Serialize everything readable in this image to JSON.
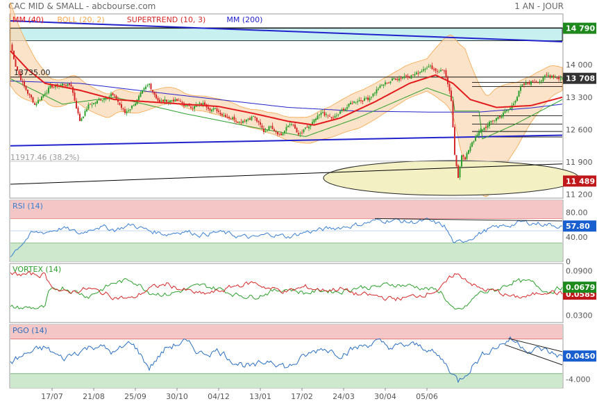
{
  "header": {
    "title": "CAC MID & SMALL - abcbourse.com",
    "period": "1 AN - JOUR"
  },
  "colors": {
    "candle_up": "#2ca02c",
    "candle_down": "#d62728",
    "mm40": "#e31a1c",
    "boll": "#f5a64a",
    "supertrend": "#d62728",
    "mm200": "#2222cc",
    "rsi_line": "#3a7fd0",
    "vortex_plus": "#2ca02c",
    "vortex_minus": "#d62728",
    "pgo_line": "#2a6fc0",
    "zone_over": "#f4c6c6",
    "zone_under": "#cde8cd",
    "price_badge": "#333333",
    "green_badge": "#1e8a1e",
    "red_badge": "#c0181a",
    "blue_badge": "#1a5fd0"
  },
  "chart_data": [
    {
      "type": "candlestick",
      "panel": "price",
      "legend": [
        {
          "label": "MM (40)",
          "color": "#e31a1c"
        },
        {
          "label": "BOLL (20, 2)",
          "color": "#f5a64a"
        },
        {
          "label": "SUPERTREND (10, 3)",
          "color": "#d62728"
        },
        {
          "label": "MM (200)",
          "color": "#2222cc"
        }
      ],
      "y_ticks": [
        "14 000",
        "13 300",
        "12 600",
        "11 900",
        "11 200"
      ],
      "y_tick_values": [
        14000,
        13300,
        12600,
        11900,
        11200
      ],
      "ylim": [
        11120,
        15100
      ],
      "badges": [
        {
          "label": "14 790",
          "value": 14790,
          "kind": "green"
        },
        {
          "label": "13 708",
          "value": 13708,
          "kind": "price"
        },
        {
          "label": "11 489",
          "value": 11489,
          "kind": "red"
        }
      ],
      "annotations": [
        {
          "label": "13735.00",
          "value": 13735
        },
        {
          "label": "11917.46  (38.2%)",
          "value": 11917.46
        }
      ],
      "anchors": [
        [
          0,
          14450
        ],
        [
          3,
          14000
        ],
        [
          8,
          13520
        ],
        [
          14,
          13150
        ],
        [
          22,
          13500
        ],
        [
          30,
          13580
        ],
        [
          35,
          13550
        ],
        [
          40,
          12800
        ],
        [
          45,
          13120
        ],
        [
          52,
          13250
        ],
        [
          58,
          13380
        ],
        [
          62,
          13200
        ],
        [
          66,
          12950
        ],
        [
          72,
          13200
        ],
        [
          80,
          13560
        ],
        [
          86,
          13200
        ],
        [
          94,
          13250
        ],
        [
          102,
          13100
        ],
        [
          112,
          13150
        ],
        [
          122,
          12950
        ],
        [
          132,
          12800
        ],
        [
          140,
          12900
        ],
        [
          146,
          12550
        ],
        [
          150,
          12700
        ],
        [
          156,
          12500
        ],
        [
          162,
          12750
        ],
        [
          166,
          12450
        ],
        [
          172,
          12650
        ],
        [
          180,
          12950
        ],
        [
          186,
          12820
        ],
        [
          194,
          13100
        ],
        [
          200,
          13250
        ],
        [
          206,
          13280
        ],
        [
          212,
          13500
        ],
        [
          220,
          13680
        ],
        [
          228,
          13780
        ],
        [
          234,
          13800
        ],
        [
          240,
          14000
        ],
        [
          246,
          13880
        ],
        [
          250,
          13900
        ],
        [
          254,
          13200
        ],
        [
          256,
          12000
        ],
        [
          258,
          11580
        ],
        [
          260,
          12100
        ],
        [
          262,
          11950
        ],
        [
          266,
          12350
        ],
        [
          272,
          12600
        ],
        [
          280,
          12850
        ],
        [
          288,
          13050
        ],
        [
          294,
          13500
        ],
        [
          300,
          13630
        ],
        [
          306,
          13700
        ],
        [
          312,
          13780
        ],
        [
          318,
          13708
        ]
      ],
      "mm40_anchors": [
        [
          0,
          14300
        ],
        [
          10,
          13900
        ],
        [
          20,
          13600
        ],
        [
          40,
          13450
        ],
        [
          60,
          13250
        ],
        [
          80,
          13200
        ],
        [
          100,
          13150
        ],
        [
          120,
          13100
        ],
        [
          140,
          12950
        ],
        [
          160,
          12780
        ],
        [
          175,
          12700
        ],
        [
          190,
          12850
        ],
        [
          210,
          13200
        ],
        [
          230,
          13600
        ],
        [
          245,
          13780
        ],
        [
          255,
          13600
        ],
        [
          265,
          13250
        ],
        [
          280,
          13080
        ],
        [
          300,
          13120
        ],
        [
          318,
          13300
        ]
      ],
      "mm200_anchors": [
        [
          0,
          13650
        ],
        [
          40,
          13600
        ],
        [
          80,
          13420
        ],
        [
          120,
          13250
        ],
        [
          160,
          13080
        ],
        [
          200,
          13000
        ],
        [
          240,
          12980
        ],
        [
          270,
          12980
        ],
        [
          300,
          13070
        ],
        [
          318,
          13150
        ]
      ],
      "supertrend_anchors": [
        [
          0,
          13700
        ],
        [
          30,
          13150
        ],
        [
          60,
          13300
        ],
        [
          100,
          12950
        ],
        [
          140,
          12650
        ],
        [
          170,
          12450
        ],
        [
          200,
          12850
        ],
        [
          240,
          13500
        ],
        [
          255,
          13300
        ],
        [
          256,
          13000
        ],
        [
          270,
          13000
        ],
        [
          272,
          12400
        ],
        [
          290,
          12700
        ],
        [
          318,
          13250
        ]
      ],
      "boll_width_anchors": [
        [
          0,
          900
        ],
        [
          20,
          300
        ],
        [
          60,
          250
        ],
        [
          100,
          150
        ],
        [
          140,
          200
        ],
        [
          170,
          280
        ],
        [
          200,
          400
        ],
        [
          240,
          350
        ],
        [
          256,
          900
        ],
        [
          262,
          1300
        ],
        [
          280,
          1000
        ],
        [
          300,
          500
        ],
        [
          318,
          250
        ]
      ],
      "trend_lines": [
        {
          "x1": 0,
          "y1": 14950,
          "x2": 318,
          "y2": 14500,
          "color": "#2222cc"
        },
        {
          "x1": 0,
          "y1": 12250,
          "x2": 318,
          "y2": 12480,
          "color": "#2222cc"
        },
        {
          "x1": 0,
          "y1": 11420,
          "x2": 318,
          "y2": 11860,
          "color": "#000000"
        }
      ],
      "zones": [
        {
          "y_top": 14800,
          "y_bottom": 14520,
          "color": "#c9f0f0"
        }
      ],
      "horizontal_levels": [
        14790,
        13735,
        13620,
        13530,
        12900,
        12720,
        12560,
        12440,
        11917.46
      ]
    },
    {
      "type": "line",
      "panel": "rsi",
      "legend": [
        {
          "label": "RSI (14)",
          "color": "#3a7fd0"
        }
      ],
      "y_ticks": [
        "80.00",
        "40.00",
        "0"
      ],
      "y_tick_values": [
        80,
        40,
        0
      ],
      "ylim": [
        0,
        100
      ],
      "zone_over": [
        70,
        100
      ],
      "zone_under": [
        0,
        30
      ],
      "mid_level": 50,
      "badge": {
        "label": "57.80",
        "value": 57.8
      },
      "anchors": [
        [
          0,
          10
        ],
        [
          5,
          25
        ],
        [
          12,
          45
        ],
        [
          20,
          48
        ],
        [
          30,
          55
        ],
        [
          40,
          45
        ],
        [
          50,
          58
        ],
        [
          60,
          52
        ],
        [
          70,
          60
        ],
        [
          80,
          50
        ],
        [
          90,
          45
        ],
        [
          100,
          50
        ],
        [
          110,
          44
        ],
        [
          120,
          48
        ],
        [
          130,
          42
        ],
        [
          140,
          38
        ],
        [
          150,
          45
        ],
        [
          160,
          40
        ],
        [
          170,
          48
        ],
        [
          180,
          52
        ],
        [
          190,
          56
        ],
        [
          200,
          60
        ],
        [
          210,
          66
        ],
        [
          220,
          68
        ],
        [
          230,
          64
        ],
        [
          240,
          66
        ],
        [
          250,
          58
        ],
        [
          256,
          28
        ],
        [
          260,
          32
        ],
        [
          266,
          40
        ],
        [
          275,
          52
        ],
        [
          285,
          58
        ],
        [
          295,
          64
        ],
        [
          305,
          62
        ],
        [
          318,
          57.8
        ]
      ]
    },
    {
      "type": "line",
      "panel": "vortex",
      "legend": [
        {
          "label": "VORTEX (14)",
          "color": "#2ca02c"
        }
      ],
      "y_ticks": [
        "0.0900",
        "0.0300"
      ],
      "y_tick_values": [
        0.09,
        0.03
      ],
      "ylim": [
        0.02,
        0.1
      ],
      "badges": [
        {
          "label": "0.0679",
          "value": 0.0679,
          "kind": "green"
        },
        {
          "label": "0.0585",
          "value": 0.0585,
          "kind": "red"
        }
      ],
      "series": [
        {
          "name": "VI+",
          "color": "#2ca02c",
          "anchors": [
            [
              0,
              0.04
            ],
            [
              20,
              0.04
            ],
            [
              22,
              0.06
            ],
            [
              30,
              0.068
            ],
            [
              45,
              0.056
            ],
            [
              60,
              0.074
            ],
            [
              70,
              0.078
            ],
            [
              80,
              0.062
            ],
            [
              90,
              0.058
            ],
            [
              100,
              0.064
            ],
            [
              110,
              0.07
            ],
            [
              120,
              0.066
            ],
            [
              130,
              0.058
            ],
            [
              140,
              0.055
            ],
            [
              150,
              0.062
            ],
            [
              160,
              0.066
            ],
            [
              170,
              0.06
            ],
            [
              180,
              0.064
            ],
            [
              190,
              0.062
            ],
            [
              200,
              0.068
            ],
            [
              210,
              0.068
            ],
            [
              220,
              0.072
            ],
            [
              230,
              0.07
            ],
            [
              240,
              0.066
            ],
            [
              248,
              0.062
            ],
            [
              256,
              0.034
            ],
            [
              262,
              0.04
            ],
            [
              270,
              0.06
            ],
            [
              280,
              0.064
            ],
            [
              290,
              0.076
            ],
            [
              300,
              0.074
            ],
            [
              310,
              0.062
            ],
            [
              318,
              0.0679
            ]
          ]
        },
        {
          "name": "VI-",
          "color": "#d62728",
          "anchors": [
            [
              0,
              0.085
            ],
            [
              20,
              0.085
            ],
            [
              22,
              0.075
            ],
            [
              30,
              0.06
            ],
            [
              45,
              0.066
            ],
            [
              60,
              0.055
            ],
            [
              70,
              0.052
            ],
            [
              80,
              0.066
            ],
            [
              90,
              0.072
            ],
            [
              100,
              0.064
            ],
            [
              110,
              0.058
            ],
            [
              120,
              0.062
            ],
            [
              130,
              0.07
            ],
            [
              140,
              0.074
            ],
            [
              150,
              0.066
            ],
            [
              160,
              0.062
            ],
            [
              170,
              0.068
            ],
            [
              180,
              0.064
            ],
            [
              190,
              0.066
            ],
            [
              200,
              0.058
            ],
            [
              210,
              0.056
            ],
            [
              220,
              0.052
            ],
            [
              230,
              0.054
            ],
            [
              240,
              0.06
            ],
            [
              248,
              0.066
            ],
            [
              256,
              0.086
            ],
            [
              262,
              0.08
            ],
            [
              270,
              0.066
            ],
            [
              280,
              0.062
            ],
            [
              290,
              0.054
            ],
            [
              300,
              0.056
            ],
            [
              310,
              0.064
            ],
            [
              318,
              0.0585
            ]
          ]
        }
      ]
    },
    {
      "type": "line",
      "panel": "pgo",
      "legend": [
        {
          "label": "PGO (14)",
          "color": "#2a6fc0"
        }
      ],
      "y_ticks": [
        "-4.000"
      ],
      "y_tick_values": [
        -4
      ],
      "ylim": [
        -5.5,
        5.5
      ],
      "zone_over": [
        3,
        5.5
      ],
      "zone_under": [
        -5.5,
        -3
      ],
      "badge": {
        "label": "0.0450",
        "value": 0.045
      },
      "anchors": [
        [
          0,
          -1
        ],
        [
          10,
          0.5
        ],
        [
          20,
          1.5
        ],
        [
          30,
          -0.5
        ],
        [
          40,
          1
        ],
        [
          50,
          2
        ],
        [
          60,
          0.5
        ],
        [
          70,
          2.5
        ],
        [
          80,
          -2
        ],
        [
          90,
          1.5
        ],
        [
          100,
          2.5
        ],
        [
          110,
          0.5
        ],
        [
          120,
          1
        ],
        [
          130,
          -1
        ],
        [
          140,
          -2
        ],
        [
          150,
          -0.5
        ],
        [
          160,
          -2
        ],
        [
          170,
          0
        ],
        [
          180,
          1.5
        ],
        [
          190,
          0.5
        ],
        [
          200,
          1.5
        ],
        [
          210,
          2.5
        ],
        [
          220,
          1.5
        ],
        [
          230,
          2
        ],
        [
          240,
          1.5
        ],
        [
          250,
          -1
        ],
        [
          258,
          -4.3
        ],
        [
          262,
          -3
        ],
        [
          268,
          -1
        ],
        [
          275,
          1
        ],
        [
          282,
          2
        ],
        [
          288,
          3
        ],
        [
          294,
          2
        ],
        [
          300,
          1
        ],
        [
          306,
          1.2
        ],
        [
          312,
          0.5
        ],
        [
          318,
          0.045
        ]
      ],
      "channel_lines": [
        {
          "x1": 287,
          "y1": 3.1,
          "x2": 318,
          "y2": 0.8
        },
        {
          "x1": 285,
          "y1": 2.0,
          "x2": 318,
          "y2": -1.5
        }
      ]
    }
  ],
  "x_axis": {
    "labels": [
      "17/07",
      "21/08",
      "25/09",
      "30/10",
      "04/12",
      "13/01",
      "17/02",
      "24/03",
      "30/04",
      "05/06"
    ],
    "label_indices": [
      24,
      48,
      72,
      96,
      120,
      144,
      168,
      192,
      216,
      240
    ]
  },
  "n_points": 319
}
